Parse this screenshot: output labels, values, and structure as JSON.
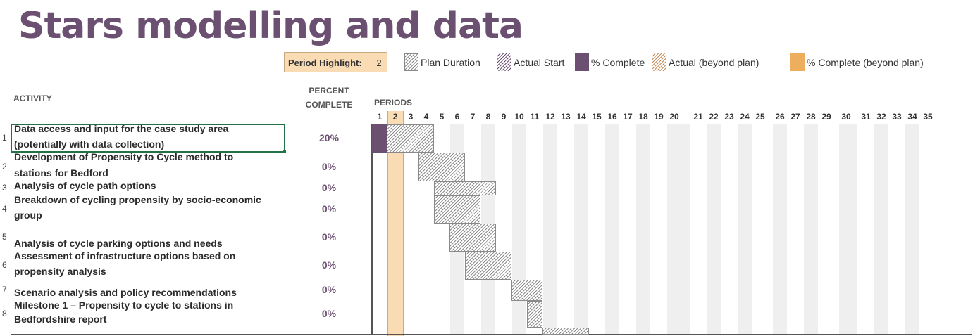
{
  "title": "Stars modelling and data",
  "period_highlight": {
    "label": "Period Highlight:",
    "value": "2"
  },
  "legend": [
    {
      "style": "hatch-gray",
      "label": "Plan Duration"
    },
    {
      "style": "hatch-purple",
      "label": "Actual Start"
    },
    {
      "style": "solid-purple",
      "label": "% Complete"
    },
    {
      "style": "hatch-orange",
      "label": "Actual (beyond plan)"
    },
    {
      "style": "solid-orange",
      "label": "% Complete (beyond plan)"
    }
  ],
  "colors": {
    "accent": "#6B5072",
    "highlight": "#F9DCB4",
    "beyond": "#EDAE5E",
    "selection": "#217346"
  },
  "headers": {
    "activity": "ACTIVITY",
    "percent_line1": "PERCENT",
    "percent_line2": "COMPLETE",
    "periods": "PERIODS"
  },
  "period_labels": [
    "1",
    "2",
    "3",
    "4",
    "5",
    "6",
    "7",
    "8",
    "9",
    "10",
    "11",
    "12",
    "13",
    "14",
    "15",
    "16",
    "17",
    "18",
    "19",
    "20",
    "21",
    "22",
    "23",
    "24",
    "25",
    "26",
    "27",
    "28",
    "29",
    "30",
    "31",
    "32",
    "33",
    "34",
    "35"
  ],
  "activities": [
    {
      "row": "1",
      "line1": "Data access and input for the case study area",
      "line2": "(potentially with data collection)",
      "percent": "20%",
      "plan_start": 1,
      "plan_duration": 4,
      "actual_start": 1,
      "actual_duration": 1,
      "complete_fraction": 0.2
    },
    {
      "row": "2",
      "line1": "Development of Propensity to Cycle method to",
      "line2": "stations for Bedford",
      "percent": "0%",
      "plan_start": 4,
      "plan_duration": 3
    },
    {
      "row": "3",
      "line1": "Analysis of cycle path options",
      "line2": "",
      "percent": "0%",
      "plan_start": 5,
      "plan_duration": 4
    },
    {
      "row": "4",
      "line1": "Breakdown of cycling propensity by socio-economic",
      "line2": "group",
      "percent": "0%",
      "plan_start": 5,
      "plan_duration": 3
    },
    {
      "row": "5",
      "line1": "",
      "line2": "Analysis of cycle parking options and needs",
      "percent": "0%",
      "plan_start": 6,
      "plan_duration": 3
    },
    {
      "row": "6",
      "line1": "Assessment of infrastructure options based on",
      "line2": "propensity analysis",
      "percent": "0%",
      "plan_start": 7,
      "plan_duration": 3
    },
    {
      "row": "7",
      "line1": "",
      "line2": "Scenario analysis and policy recommendations",
      "percent": "0%",
      "plan_start": 10,
      "plan_duration": 2
    },
    {
      "row": "8",
      "line1": "Milestone 1 – Propensity to cycle to stations in",
      "line2": "Bedfordshire report",
      "percent": "0%",
      "plan_start": 11,
      "plan_duration": 1
    },
    {
      "row": "",
      "line1": "",
      "line2": "",
      "percent": "",
      "plan_start": 12,
      "plan_duration": 3
    }
  ]
}
